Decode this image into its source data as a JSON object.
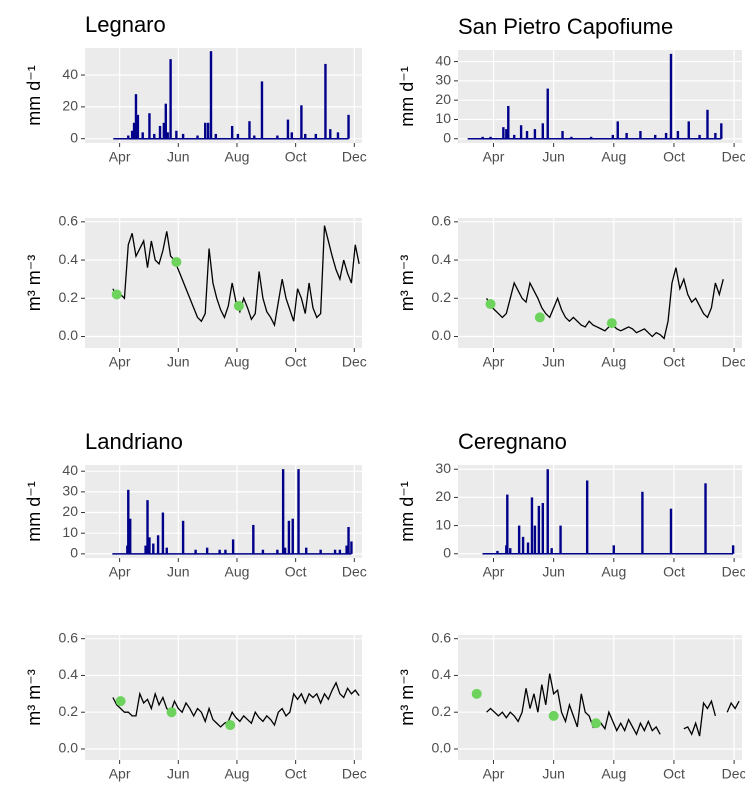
{
  "chart_data": [
    {
      "type": "bar",
      "title": "Legnaro",
      "ylabel": "mm d⁻¹",
      "color": "#00008b",
      "x": [
        100,
        104,
        106,
        108,
        110,
        115,
        122,
        127,
        133,
        137,
        139,
        141,
        144,
        150,
        157,
        172,
        180,
        183,
        186,
        191,
        208,
        214,
        226,
        231,
        239,
        255,
        266,
        270,
        280,
        284,
        295,
        305,
        310,
        318,
        329
      ],
      "values": [
        2,
        5,
        10,
        28,
        15,
        4,
        16,
        3,
        8,
        10,
        22,
        4,
        50,
        5,
        3,
        2,
        10,
        10,
        55,
        3,
        8,
        3,
        11,
        2,
        36,
        2,
        12,
        4,
        21,
        3,
        3,
        47,
        6,
        4,
        15
      ],
      "xlim": [
        55,
        343
      ],
      "xticks": [
        {
          "value": 91,
          "label": "Apr"
        },
        {
          "value": 152,
          "label": "Jun"
        },
        {
          "value": 213,
          "label": "Aug"
        },
        {
          "value": 274,
          "label": "Oct"
        },
        {
          "value": 335,
          "label": "Dec"
        }
      ],
      "ylim": [
        -2.7,
        57
      ],
      "yticks": [
        0,
        20,
        40
      ]
    },
    {
      "type": "bar",
      "title": "San Pietro Capofiume",
      "ylabel": "mm d⁻¹",
      "color": "#00008b",
      "x": [
        80,
        88,
        101,
        104,
        106,
        112,
        119,
        125,
        133,
        141,
        146,
        161,
        170,
        190,
        212,
        217,
        226,
        240,
        255,
        266,
        271,
        278,
        289,
        300,
        308,
        316,
        322
      ],
      "values": [
        1,
        1,
        6,
        5,
        17,
        2,
        7,
        4,
        5,
        8,
        26,
        4,
        1,
        1,
        2,
        9,
        3,
        4,
        2,
        3,
        44,
        4,
        9,
        2,
        15,
        3,
        8
      ],
      "xlim": [
        55,
        343
      ],
      "xticks": [
        {
          "value": 91,
          "label": "Apr"
        },
        {
          "value": 152,
          "label": "Jun"
        },
        {
          "value": 213,
          "label": "Aug"
        },
        {
          "value": 274,
          "label": "Oct"
        },
        {
          "value": 335,
          "label": "Dec"
        }
      ],
      "ylim": [
        -2.2,
        46
      ],
      "yticks": [
        0,
        10,
        20,
        30,
        40
      ]
    },
    {
      "type": "line",
      "ylabel": "m³ m⁻³",
      "color": "#000000",
      "x": [
        84,
        88,
        92,
        96,
        100,
        104,
        108,
        112,
        116,
        120,
        124,
        128,
        132,
        136,
        140,
        144,
        148,
        152,
        156,
        160,
        164,
        168,
        172,
        176,
        180,
        184,
        188,
        192,
        196,
        200,
        204,
        208,
        212,
        216,
        220,
        224,
        228,
        232,
        236,
        240,
        244,
        248,
        252,
        256,
        260,
        264,
        268,
        272,
        276,
        280,
        284,
        288,
        292,
        296,
        300,
        304,
        308,
        312,
        316,
        320,
        324,
        328,
        332,
        336,
        340
      ],
      "values": [
        0.25,
        0.21,
        0.22,
        0.2,
        0.48,
        0.54,
        0.42,
        0.46,
        0.5,
        0.36,
        0.5,
        0.4,
        0.38,
        0.45,
        0.55,
        0.42,
        0.4,
        0.35,
        0.3,
        0.25,
        0.2,
        0.15,
        0.1,
        0.08,
        0.12,
        0.46,
        0.28,
        0.2,
        0.14,
        0.1,
        0.16,
        0.28,
        0.18,
        0.13,
        0.2,
        0.15,
        0.09,
        0.12,
        0.34,
        0.2,
        0.13,
        0.1,
        0.06,
        0.18,
        0.3,
        0.2,
        0.14,
        0.08,
        0.25,
        0.2,
        0.12,
        0.28,
        0.15,
        0.1,
        0.12,
        0.58,
        0.5,
        0.42,
        0.35,
        0.3,
        0.4,
        0.33,
        0.28,
        0.48,
        0.38
      ],
      "observed": {
        "color": "#6dd35c",
        "x": [
          88,
          150,
          215
        ],
        "values": [
          0.22,
          0.39,
          0.16
        ]
      },
      "xlim": [
        55,
        343
      ],
      "xticks": [
        {
          "value": 91,
          "label": "Apr"
        },
        {
          "value": 152,
          "label": "Jun"
        },
        {
          "value": 213,
          "label": "Aug"
        },
        {
          "value": 274,
          "label": "Oct"
        },
        {
          "value": 335,
          "label": "Dec"
        }
      ],
      "ylim": [
        -0.06,
        0.62
      ],
      "yticks": [
        {
          "value": 0,
          "label": "0.0"
        },
        0.2,
        0.4,
        0.6
      ]
    },
    {
      "type": "line",
      "ylabel": "m³ m⁻³",
      "color": "#000000",
      "x": [
        84,
        88,
        92,
        96,
        100,
        104,
        108,
        112,
        116,
        120,
        124,
        128,
        132,
        136,
        140,
        144,
        148,
        152,
        156,
        160,
        164,
        168,
        172,
        176,
        180,
        184,
        188,
        192,
        196,
        200,
        204,
        208,
        212,
        216,
        220,
        224,
        228,
        232,
        236,
        240,
        244,
        248,
        252,
        256,
        260,
        264,
        268,
        272,
        276,
        280,
        284,
        288,
        292,
        296,
        300,
        304,
        308,
        312,
        316,
        320,
        324,
        328,
        332,
        336,
        340
      ],
      "values": [
        0.2,
        0.16,
        0.14,
        0.12,
        0.1,
        0.12,
        0.2,
        0.28,
        0.24,
        0.2,
        0.18,
        0.28,
        0.24,
        0.2,
        0.15,
        0.12,
        0.1,
        0.15,
        0.2,
        0.14,
        0.1,
        0.08,
        0.1,
        0.08,
        0.06,
        0.05,
        0.08,
        0.06,
        0.05,
        0.04,
        0.03,
        0.05,
        0.06,
        0.04,
        0.03,
        0.04,
        0.05,
        0.04,
        0.02,
        0.03,
        0.04,
        0.02,
        0.0,
        0.02,
        0.01,
        -0.01,
        0.08,
        0.28,
        0.36,
        0.25,
        0.3,
        0.22,
        0.18,
        0.2,
        0.16,
        0.12,
        0.1,
        0.15,
        0.28,
        0.22,
        0.3,
        null,
        null,
        null,
        null
      ],
      "observed": {
        "color": "#6dd35c",
        "x": [
          88,
          138,
          211
        ],
        "values": [
          0.17,
          0.1,
          0.07
        ]
      },
      "xlim": [
        55,
        343
      ],
      "xticks": [
        {
          "value": 91,
          "label": "Apr"
        },
        {
          "value": 152,
          "label": "Jun"
        },
        {
          "value": 213,
          "label": "Aug"
        },
        {
          "value": 274,
          "label": "Oct"
        },
        {
          "value": 335,
          "label": "Dec"
        }
      ],
      "ylim": [
        -0.06,
        0.62
      ],
      "yticks": [
        {
          "value": 0,
          "label": "0.0"
        },
        0.2,
        0.4,
        0.6
      ]
    },
    {
      "type": "bar",
      "title": "Landriano",
      "ylabel": "mm d⁻¹",
      "color": "#00008b",
      "x": [
        99,
        100,
        102,
        118,
        120,
        122,
        126,
        131,
        136,
        140,
        157,
        170,
        182,
        195,
        201,
        209,
        230,
        240,
        255,
        261,
        263,
        267,
        271,
        277,
        285,
        300,
        315,
        320,
        327,
        329,
        332
      ],
      "values": [
        4,
        31,
        17,
        4,
        26,
        8,
        5,
        9,
        20,
        3,
        16,
        2,
        3,
        2,
        2,
        7,
        14,
        2,
        2,
        41,
        3,
        16,
        17,
        41,
        3,
        2,
        2,
        2,
        4,
        13,
        6
      ],
      "xlim": [
        55,
        343
      ],
      "xticks": [
        {
          "value": 91,
          "label": "Apr"
        },
        {
          "value": 152,
          "label": "Jun"
        },
        {
          "value": 213,
          "label": "Aug"
        },
        {
          "value": 274,
          "label": "Oct"
        },
        {
          "value": 335,
          "label": "Dec"
        }
      ],
      "ylim": [
        -2,
        43
      ],
      "yticks": [
        0,
        10,
        20,
        30,
        40
      ]
    },
    {
      "type": "bar",
      "title": "Ceregnano",
      "ylabel": "mm d⁻¹",
      "color": "#00008b",
      "x": [
        95,
        104,
        105,
        108,
        117,
        121,
        126,
        130,
        133,
        137,
        141,
        146,
        150,
        159,
        186,
        213,
        242,
        271,
        306,
        334
      ],
      "values": [
        1,
        3,
        21,
        2,
        10,
        6,
        4,
        20,
        10,
        17,
        18,
        30,
        2,
        10,
        26,
        3,
        22,
        16,
        25,
        3
      ],
      "xlim": [
        55,
        343
      ],
      "xticks": [
        {
          "value": 91,
          "label": "Apr"
        },
        {
          "value": 152,
          "label": "Jun"
        },
        {
          "value": 213,
          "label": "Aug"
        },
        {
          "value": 274,
          "label": "Oct"
        },
        {
          "value": 335,
          "label": "Dec"
        }
      ],
      "ylim": [
        -1.5,
        31.5
      ],
      "yticks": [
        0,
        10,
        20,
        30
      ]
    },
    {
      "type": "line",
      "ylabel": "m³ m⁻³",
      "color": "#000000",
      "x": [
        84,
        88,
        92,
        96,
        100,
        104,
        108,
        112,
        116,
        120,
        124,
        128,
        132,
        136,
        140,
        144,
        148,
        152,
        156,
        160,
        164,
        168,
        172,
        176,
        180,
        184,
        188,
        192,
        196,
        200,
        204,
        208,
        212,
        216,
        220,
        224,
        228,
        232,
        236,
        240,
        244,
        248,
        252,
        256,
        260,
        264,
        268,
        272,
        276,
        280,
        284,
        288,
        292,
        296,
        300,
        304,
        308,
        312,
        316,
        320,
        324,
        328,
        332,
        336,
        340
      ],
      "values": [
        0.28,
        0.24,
        0.22,
        0.2,
        0.2,
        0.18,
        0.18,
        0.3,
        0.25,
        0.27,
        0.22,
        0.3,
        0.24,
        0.28,
        0.22,
        0.2,
        0.26,
        0.22,
        0.2,
        0.25,
        0.22,
        0.18,
        0.22,
        0.2,
        0.15,
        0.22,
        0.16,
        0.14,
        0.12,
        0.14,
        0.15,
        0.2,
        0.17,
        0.15,
        0.18,
        0.16,
        0.14,
        0.2,
        0.17,
        0.15,
        0.18,
        0.16,
        0.13,
        0.2,
        0.22,
        0.18,
        0.2,
        0.3,
        0.27,
        0.3,
        0.25,
        0.3,
        0.28,
        0.3,
        0.25,
        0.3,
        0.27,
        0.32,
        0.36,
        0.3,
        0.28,
        0.33,
        0.3,
        0.32,
        0.29
      ],
      "observed": {
        "color": "#6dd35c",
        "x": [
          92,
          145,
          206
        ],
        "values": [
          0.26,
          0.2,
          0.13
        ]
      },
      "xlim": [
        55,
        343
      ],
      "xticks": [
        {
          "value": 91,
          "label": "Apr"
        },
        {
          "value": 152,
          "label": "Jun"
        },
        {
          "value": 213,
          "label": "Aug"
        },
        {
          "value": 274,
          "label": "Oct"
        },
        {
          "value": 335,
          "label": "Dec"
        }
      ],
      "ylim": [
        -0.06,
        0.62
      ],
      "yticks": [
        {
          "value": 0,
          "label": "0.0"
        },
        0.2,
        0.4,
        0.6
      ]
    },
    {
      "type": "line",
      "ylabel": "m³ m⁻³",
      "color": "#000000",
      "x": [
        84,
        88,
        92,
        96,
        100,
        104,
        108,
        112,
        116,
        120,
        124,
        128,
        132,
        136,
        140,
        144,
        148,
        152,
        156,
        160,
        164,
        168,
        172,
        176,
        180,
        184,
        188,
        192,
        196,
        200,
        204,
        208,
        212,
        216,
        220,
        224,
        228,
        232,
        236,
        240,
        244,
        248,
        252,
        256,
        260,
        264,
        268,
        272,
        276,
        280,
        284,
        288,
        292,
        296,
        300,
        304,
        308,
        312,
        316,
        320,
        324,
        328,
        332,
        336,
        340
      ],
      "values": [
        0.2,
        0.22,
        0.2,
        0.18,
        0.2,
        0.17,
        0.2,
        0.18,
        0.15,
        0.2,
        0.33,
        0.22,
        0.3,
        0.2,
        0.35,
        0.24,
        0.41,
        0.3,
        0.32,
        0.2,
        0.15,
        0.24,
        0.18,
        0.12,
        0.3,
        0.2,
        0.18,
        0.12,
        0.16,
        0.14,
        0.11,
        0.2,
        0.15,
        0.1,
        0.14,
        0.1,
        0.16,
        0.12,
        0.08,
        0.14,
        0.1,
        0.15,
        0.1,
        0.12,
        0.08,
        null,
        null,
        null,
        null,
        null,
        0.11,
        0.12,
        0.08,
        0.14,
        0.07,
        0.25,
        0.22,
        0.26,
        0.18,
        null,
        null,
        0.2,
        0.25,
        0.22,
        0.26
      ],
      "observed": {
        "color": "#6dd35c",
        "x": [
          74,
          152,
          195
        ],
        "values": [
          0.3,
          0.18,
          0.14
        ]
      },
      "xlim": [
        55,
        343
      ],
      "xticks": [
        {
          "value": 91,
          "label": "Apr"
        },
        {
          "value": 152,
          "label": "Jun"
        },
        {
          "value": 213,
          "label": "Aug"
        },
        {
          "value": 274,
          "label": "Oct"
        },
        {
          "value": 335,
          "label": "Dec"
        }
      ],
      "ylim": [
        -0.06,
        0.62
      ],
      "yticks": [
        {
          "value": 0,
          "label": "0.0"
        },
        0.2,
        0.4,
        0.6
      ]
    }
  ]
}
